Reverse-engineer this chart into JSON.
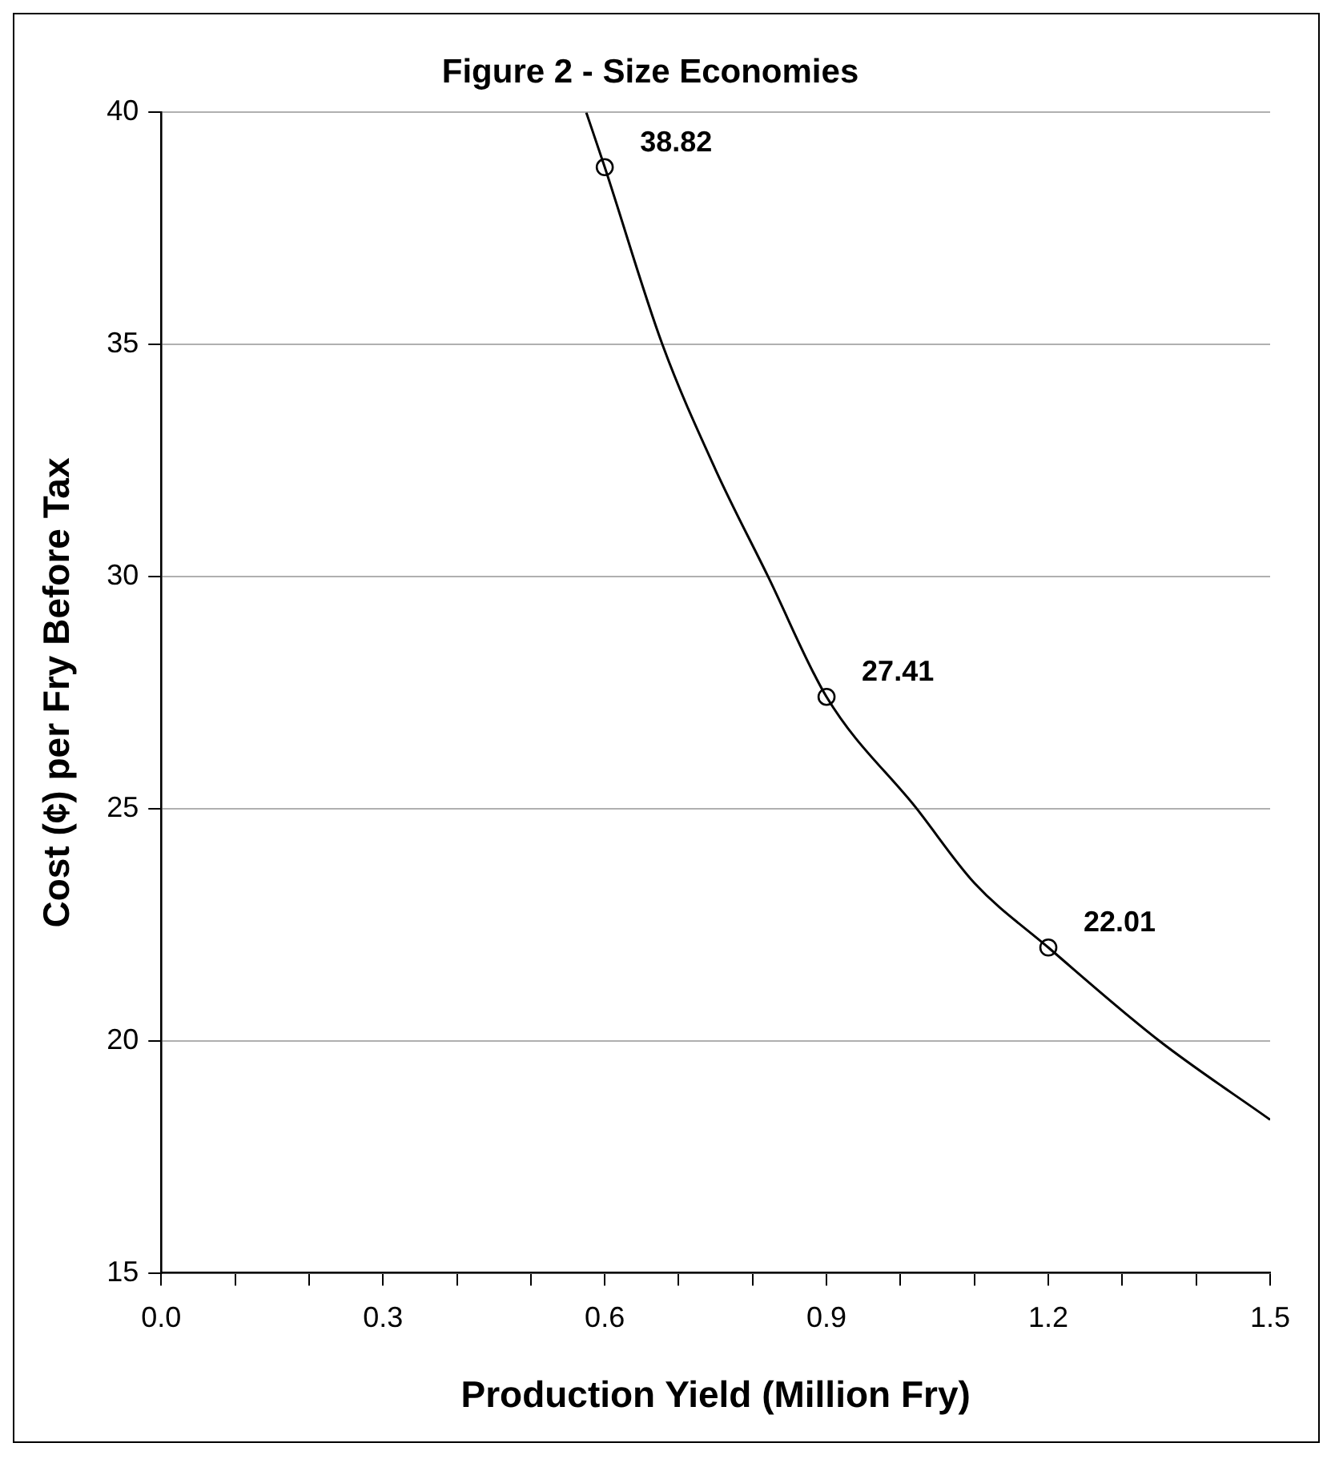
{
  "chart_data": {
    "type": "line",
    "title": "Figure 2 - Size Economies",
    "xlabel": "Production Yield (Million Fry)",
    "ylabel": "Cost (¢) per Fry Before Tax",
    "xlim": [
      0,
      1.5
    ],
    "xticks": [
      {
        "value": 0,
        "label": "0.0"
      },
      {
        "value": 0.1,
        "label": null
      },
      {
        "value": 0.2,
        "label": null
      },
      0.3,
      {
        "value": 0.4,
        "label": null
      },
      {
        "value": 0.5,
        "label": null
      },
      0.6,
      {
        "value": 0.7,
        "label": null
      },
      {
        "value": 0.8,
        "label": null
      },
      0.9,
      {
        "value": 1,
        "label": null
      },
      {
        "value": 1.1,
        "label": null
      },
      1.2,
      {
        "value": 1.3,
        "label": null
      },
      {
        "value": 1.4,
        "label": null
      },
      1.5
    ],
    "ylim": [
      15,
      40
    ],
    "yticks": [
      15,
      20,
      25,
      30,
      35,
      40
    ],
    "grid": "y",
    "series": [
      {
        "color": "#000000",
        "marker": "none",
        "line_style": "solid",
        "x": [
          0.575,
          0.6,
          0.678,
          0.75,
          0.821,
          0.9,
          1.022,
          1.1,
          1.2,
          1.35,
          1.5
        ],
        "values": [
          40,
          38.82,
          35,
          32.3,
          30,
          27.41,
          25,
          23.4,
          22.01,
          20,
          18.3
        ]
      },
      {
        "type": "scatter",
        "color": "#000000",
        "marker": "circle",
        "x": [
          0.6,
          0.9,
          1.2
        ],
        "values": [
          38.82,
          27.41,
          22.01
        ],
        "value_labels": [
          "38.82",
          "27.41",
          "22.01"
        ]
      }
    ]
  }
}
